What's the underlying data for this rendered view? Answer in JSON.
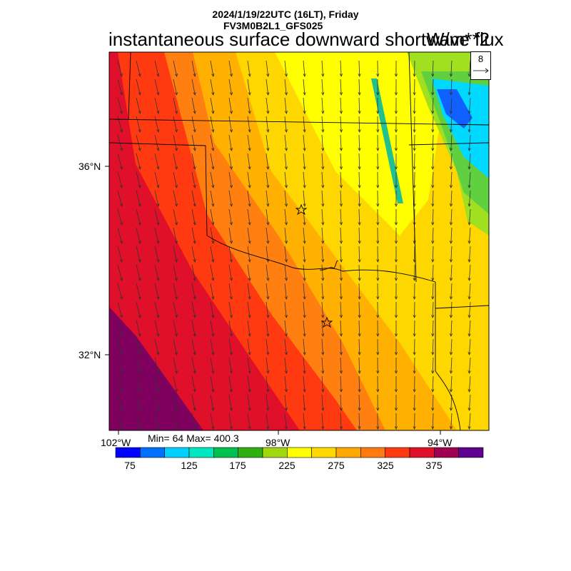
{
  "header": {
    "datetime": "2024/1/19/22UTC (16LT), Friday",
    "model": "FV3M0B2L1_GFS025",
    "variable": "instantaneous surface downward shortwave flux",
    "units": "W/m**2"
  },
  "map": {
    "lat_labels": [
      "36°N",
      "32°N"
    ],
    "lon_labels": [
      "102°W",
      "98°W",
      "94°W"
    ],
    "stats": "Min= 64 Max= 400.3",
    "vector_reference": "8",
    "field_colors": {
      "dark_purple": "#800060",
      "crimson": "#e0102a",
      "red_orange": "#ff3a10",
      "orange": "#ff8010",
      "amber": "#ffb000",
      "gold": "#ffd700",
      "yellow": "#ffff00",
      "yellow_green": "#a0e020",
      "cyan": "#00d8ff",
      "blue": "#1060ff"
    }
  },
  "colorbar": {
    "colors": [
      "#0000ff",
      "#0070ff",
      "#00d0ff",
      "#00e8c0",
      "#00c050",
      "#30b010",
      "#a0d810",
      "#ffff00",
      "#ffd800",
      "#ffa800",
      "#ff7a10",
      "#ff3a10",
      "#e0102a",
      "#a00050",
      "#600090"
    ],
    "labels": [
      "75",
      "125",
      "175",
      "225",
      "275",
      "325",
      "375"
    ]
  }
}
